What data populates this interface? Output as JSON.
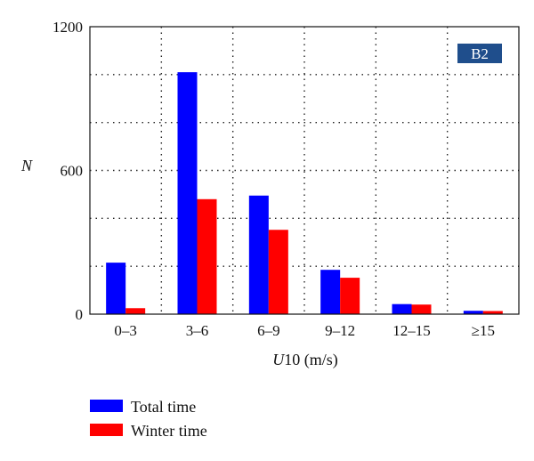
{
  "chart_data": {
    "type": "bar",
    "categories": [
      "0–3",
      "3–6",
      "6–9",
      "9–12",
      "12–15",
      "≥15"
    ],
    "series": [
      {
        "name": "Total time",
        "values": [
          215,
          1010,
          495,
          185,
          42,
          14
        ],
        "color": "#0000ff"
      },
      {
        "name": "Winter time",
        "values": [
          25,
          480,
          352,
          152,
          40,
          13
        ],
        "color": "#ff0000"
      }
    ],
    "title": "",
    "xlabel": "U10 (m/s)",
    "xlabel_italic": "U",
    "xlabel_rest": "10 (m/s)",
    "ylabel": "N",
    "ylim": [
      0,
      1200
    ],
    "yticks": [
      0,
      600,
      1200
    ],
    "grid": true,
    "legend_position": "bottom-left",
    "panel_badge": {
      "text": "B2",
      "color": "#1f4e8c"
    }
  }
}
